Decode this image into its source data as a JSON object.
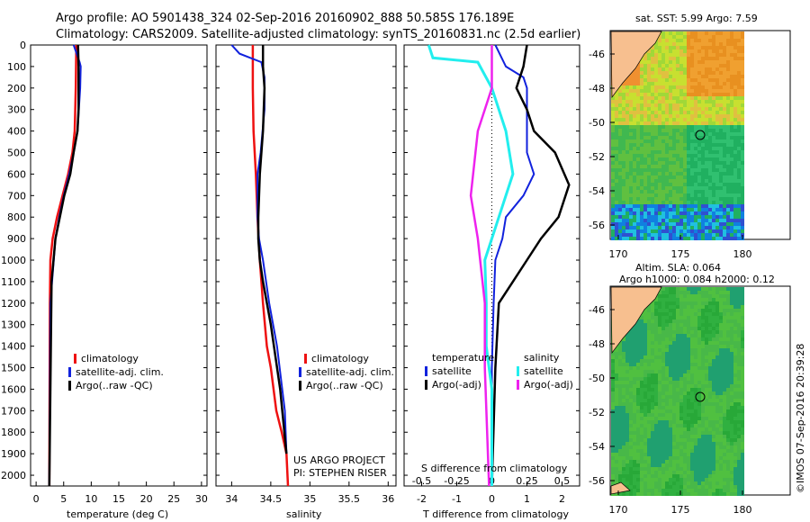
{
  "header": {
    "line1": "Argo profile: AO 5901438_324 02-Sep-2016 20160902_888 50.585S 176.189E",
    "line2": "Climatology: CARS2009. Satellite-adjusted climatology: synTS_20160831.nc (2.5d earlier)"
  },
  "colors": {
    "climatology": "#ee1111",
    "satellite": "#1122dd",
    "argo": "#000000",
    "cyan": "#22eeee",
    "magenta": "#ee22ee",
    "land": "#f7bf8f"
  },
  "depth_axis": {
    "ticks": [
      "0",
      "100",
      "200",
      "300",
      "400",
      "500",
      "600",
      "700",
      "800",
      "900",
      "1000",
      "1100",
      "1200",
      "1300",
      "1400",
      "1500",
      "1600",
      "1700",
      "1800",
      "1900",
      "2000"
    ]
  },
  "panels": {
    "temperature": {
      "xlabel": "temperature (deg C)",
      "xticks": [
        "0",
        "5",
        "10",
        "15",
        "20",
        "25",
        "30"
      ],
      "legend": [
        "climatology",
        "satellite-adj. clim.",
        "Argo(..raw -QC)"
      ]
    },
    "salinity": {
      "xlabel": "salinity",
      "xticks": [
        "34",
        "34.5",
        "35",
        "35.5",
        "36"
      ],
      "legend": [
        "climatology",
        "satellite-adj. clim.",
        "Argo(..raw -QC)"
      ],
      "credit1": "US ARGO PROJECT",
      "credit2": "PI: STEPHEN RISER"
    },
    "difference": {
      "xlabel": "T difference from climatology",
      "top_label": "S difference from climatology",
      "xticks_t": [
        "-2",
        "-1",
        "0",
        "1",
        "2"
      ],
      "xticks_s": [
        "-0.5",
        "-0.25",
        "0",
        "0.25",
        "0.5"
      ],
      "legend_t_title": "temperature",
      "legend_s_title": "salinity",
      "legend_t": [
        "satellite",
        "Argo(-adj)"
      ],
      "legend_s": [
        "satellite",
        "Argo(-adj)"
      ]
    }
  },
  "maps": {
    "sst": {
      "title": "sat. SST: 5.99 Argo: 7.59",
      "yticks": [
        "-46",
        "-48",
        "-50",
        "-52",
        "-54",
        "-56"
      ],
      "xticks": [
        "170",
        "175",
        "180"
      ]
    },
    "sla": {
      "title1": "Altim. SLA: 0.064",
      "title2": "Argo h1000: 0.084 h2000: 0.12",
      "yticks": [
        "-46",
        "-48",
        "-50",
        "-52",
        "-54",
        "-56"
      ],
      "xticks": [
        "170",
        "175",
        "180"
      ]
    },
    "watermark": "©IMOS 07-Sep-2016 20:39:28"
  },
  "chart_data": [
    {
      "type": "line",
      "xlabel": "temperature (deg C)",
      "ylabel": "",
      "xlim": [
        -1,
        31
      ],
      "ylim": [
        2050,
        0
      ],
      "series": [
        {
          "name": "climatology",
          "x": [
            7.3,
            7.2,
            7.0,
            6.6,
            5.8,
            4.8,
            3.8,
            3.0,
            2.6,
            2.5,
            2.4
          ],
          "y": [
            0,
            200,
            400,
            500,
            600,
            700,
            800,
            900,
            1000,
            1200,
            2050
          ]
        },
        {
          "name": "satellite-adj. clim.",
          "x": [
            6.8,
            7.9,
            8.1,
            8.0,
            7.5,
            6.8,
            6.0,
            5.0,
            4.2,
            3.5,
            2.6,
            2.4
          ],
          "y": [
            0,
            80,
            100,
            200,
            400,
            500,
            600,
            700,
            800,
            900,
            1200,
            2050
          ]
        },
        {
          "name": "Argo(..raw -QC)",
          "x": [
            7.6,
            7.7,
            7.7,
            7.5,
            6.8,
            6.2,
            5.1,
            4.3,
            3.5,
            2.8,
            2.4
          ],
          "y": [
            0,
            100,
            300,
            400,
            500,
            600,
            700,
            800,
            900,
            1100,
            2050
          ]
        }
      ]
    },
    {
      "type": "line",
      "xlabel": "salinity",
      "ylabel": "",
      "xlim": [
        33.8,
        36.1
      ],
      "ylim": [
        2050,
        0
      ],
      "series": [
        {
          "name": "climatology",
          "x": [
            34.27,
            34.27,
            34.28,
            34.31,
            34.33,
            34.36,
            34.4,
            34.45,
            34.5,
            34.57,
            34.64,
            34.7,
            34.72
          ],
          "y": [
            0,
            200,
            400,
            600,
            800,
            1000,
            1200,
            1400,
            1500,
            1700,
            1800,
            1900,
            2050
          ]
        },
        {
          "name": "satellite-adj. clim.",
          "x": [
            34.0,
            34.1,
            34.38,
            34.42,
            34.42,
            34.37,
            34.33,
            34.33,
            34.35,
            34.4,
            34.48,
            34.58,
            34.68,
            34.7
          ],
          "y": [
            0,
            40,
            80,
            150,
            300,
            500,
            600,
            800,
            900,
            1000,
            1200,
            1400,
            1700,
            1900
          ]
        },
        {
          "name": "Argo(..raw -QC)",
          "x": [
            34.4,
            34.4,
            34.42,
            34.4,
            34.36,
            34.34,
            34.34,
            34.36,
            34.4,
            34.5,
            34.62,
            34.7
          ],
          "y": [
            0,
            100,
            200,
            400,
            600,
            800,
            900,
            1000,
            1100,
            1300,
            1600,
            1900
          ]
        }
      ]
    },
    {
      "type": "line",
      "xlabel": "T difference from climatology",
      "ylabel": "",
      "xlim": [
        -2.5,
        2.5
      ],
      "ylim": [
        2050,
        0
      ],
      "series": [
        {
          "name": "temperature satellite",
          "x": [
            0.1,
            0.4,
            0.9,
            1.0,
            1.0,
            1.0,
            1.2,
            0.9,
            0.4,
            0.3,
            0.1,
            0.05,
            0.0,
            0.0
          ],
          "y": [
            0,
            100,
            150,
            200,
            300,
            500,
            600,
            700,
            800,
            900,
            1000,
            1200,
            1500,
            2050
          ]
        },
        {
          "name": "temperature Argo(-adj)",
          "x": [
            1.0,
            0.9,
            0.7,
            1.0,
            1.2,
            1.8,
            2.2,
            1.9,
            1.4,
            1.0,
            0.6,
            0.2,
            0.1,
            0.0
          ],
          "y": [
            0,
            100,
            200,
            300,
            400,
            500,
            650,
            800,
            900,
            1000,
            1100,
            1200,
            1500,
            2050
          ]
        },
        {
          "name": "salinity satellite",
          "x": [
            -0.45,
            -0.42,
            -0.1,
            0.0,
            0.1,
            0.15,
            0.05,
            -0.05,
            -0.04,
            -0.04,
            0.0,
            0.0
          ],
          "y": [
            0,
            60,
            80,
            200,
            400,
            600,
            800,
            1000,
            1200,
            1400,
            1600,
            2050
          ]
        },
        {
          "name": "salinity Argo(-adj)",
          "x": [
            0.0,
            0.0,
            -0.1,
            -0.15,
            -0.1,
            -0.05,
            -0.05,
            -0.02
          ],
          "y": [
            0,
            200,
            400,
            700,
            900,
            1200,
            1500,
            2050
          ]
        }
      ]
    }
  ]
}
